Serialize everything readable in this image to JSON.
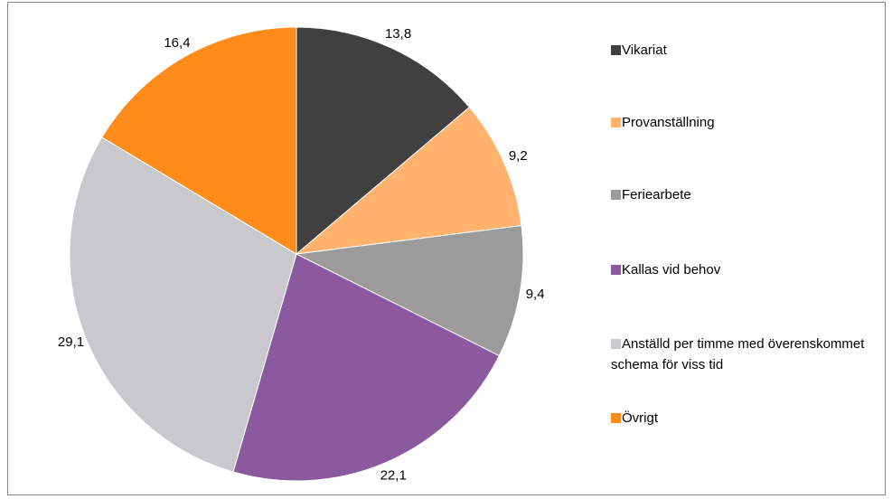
{
  "chart_data": {
    "type": "pie",
    "categories": [
      "Vikariat",
      "Provanställning",
      "Feriearbete",
      "Kallas vid behov",
      "Anställd per timme  med överenskommet schema för viss tid",
      "Övrigt"
    ],
    "values": [
      13.8,
      9.2,
      9.4,
      22.1,
      29.1,
      16.4
    ],
    "value_labels": [
      "13,8",
      "9,2",
      "9,4",
      "22,1",
      "29,1",
      "16,4"
    ],
    "colors": [
      "#404040",
      "#ffb36e",
      "#9b9b9b",
      "#8b5a9e",
      "#c8c8cd",
      "#ff8c1a"
    ]
  }
}
